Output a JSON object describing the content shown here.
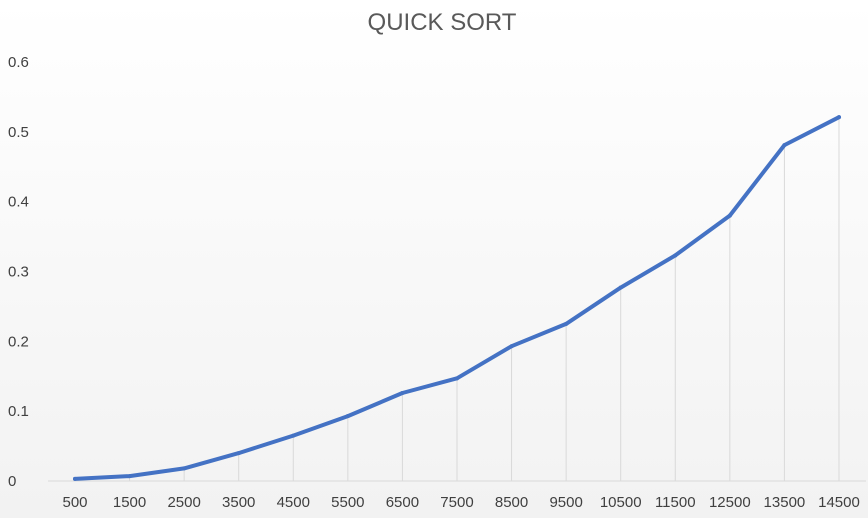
{
  "chart_data": {
    "type": "line",
    "title": "QUICK SORT",
    "xlabel": "",
    "ylabel": "",
    "categories": [
      "500",
      "1500",
      "2500",
      "3500",
      "4500",
      "5500",
      "6500",
      "7500",
      "8500",
      "9500",
      "10500",
      "11500",
      "12500",
      "13500",
      "14500"
    ],
    "series": [
      {
        "values": [
          0.003,
          0.007,
          0.018,
          0.04,
          0.065,
          0.093,
          0.126,
          0.147,
          0.193,
          0.225,
          0.277,
          0.323,
          0.38,
          0.481,
          0.521
        ]
      }
    ],
    "ylim": [
      0,
      0.6
    ],
    "yticks": [
      "0",
      "0.1",
      "0.2",
      "0.3",
      "0.4",
      "0.5",
      "0.6"
    ],
    "grid": "vertical drop lines",
    "legend": "none",
    "colors": {
      "line": "#4472C4",
      "gridline": "#d9d9d9",
      "title": "#595959",
      "tick_text": "#404040",
      "background_top": "#ffffff",
      "background_bottom": "#f2f2f2"
    }
  }
}
